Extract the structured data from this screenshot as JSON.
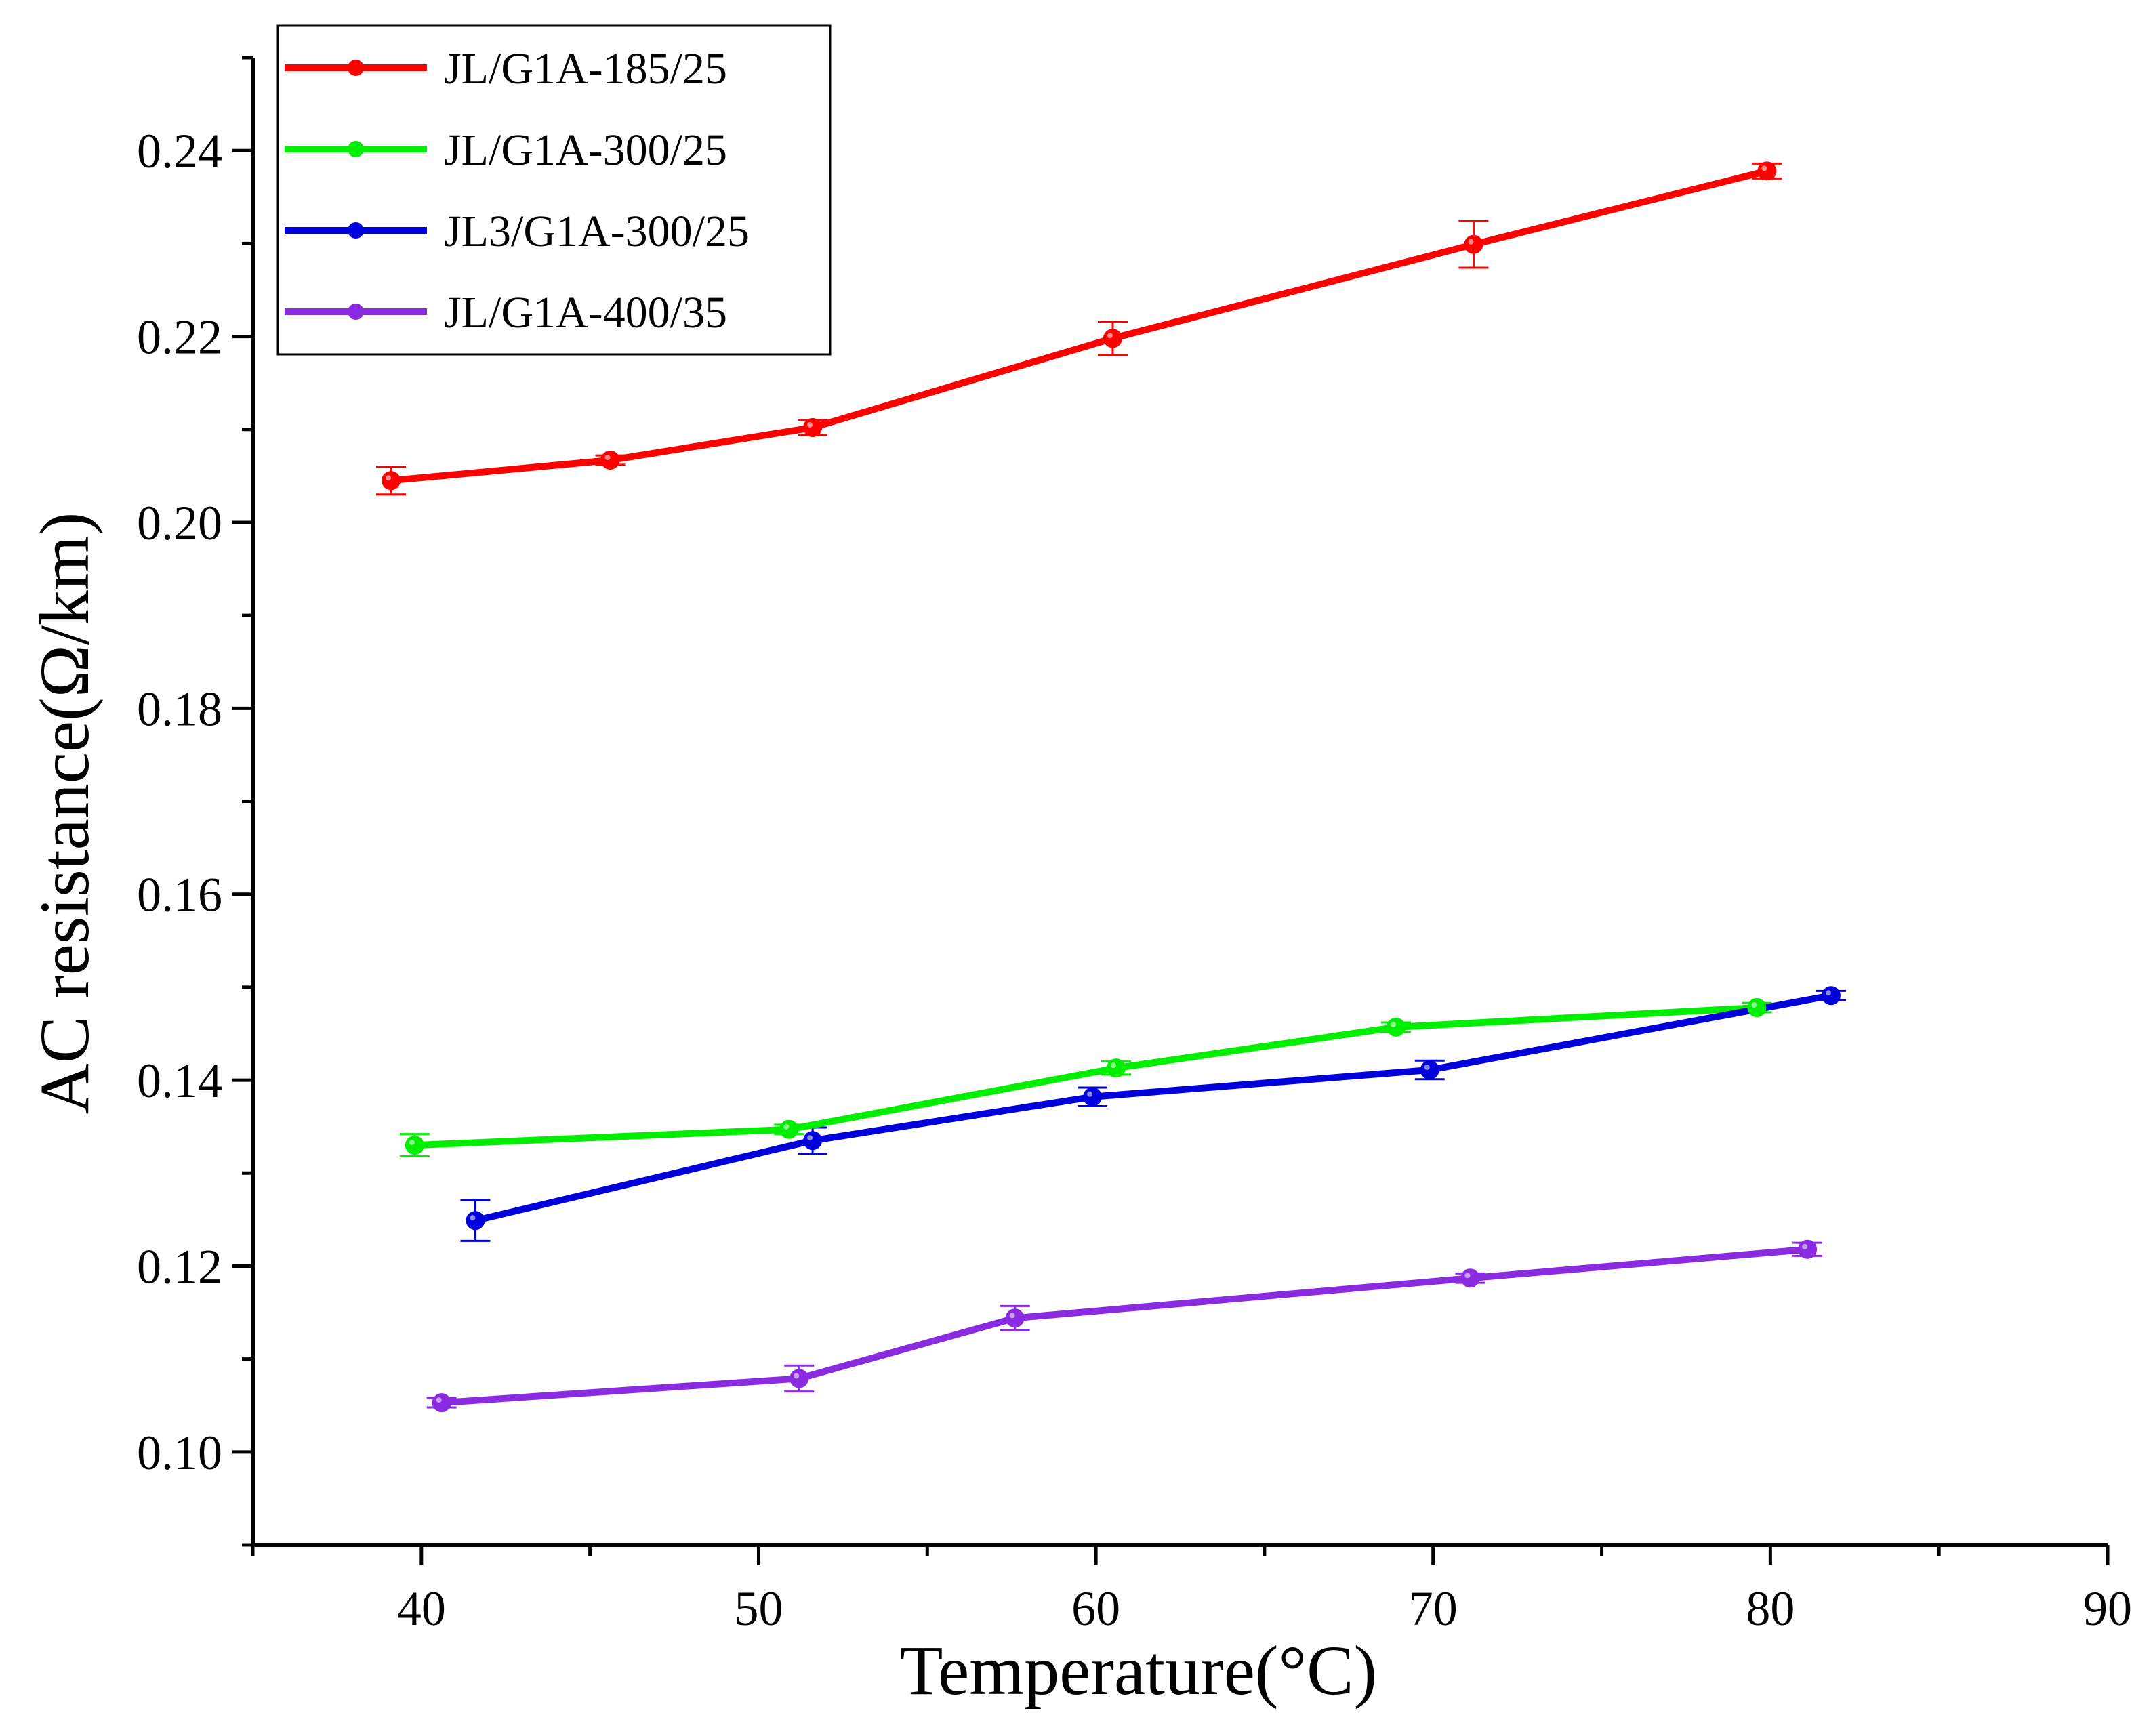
{
  "chart_data": {
    "type": "line",
    "title": "",
    "xlabel": "Temperature(°C)",
    "ylabel": "AC resistance(Ω/km)",
    "xlim": [
      35,
      90
    ],
    "ylim": [
      0.09,
      0.25
    ],
    "xticks": [
      40,
      50,
      60,
      70,
      80,
      90
    ],
    "yticks": [
      0.1,
      0.12,
      0.14,
      0.16,
      0.18,
      0.2,
      0.22,
      0.24
    ],
    "xtick_labels": [
      "40",
      "50",
      "60",
      "70",
      "80",
      "90"
    ],
    "ytick_labels": [
      "0.10",
      "0.12",
      "0.14",
      "0.16",
      "0.18",
      "0.20",
      "0.22",
      "0.24"
    ],
    "legend_position": "top-left",
    "series": [
      {
        "name": "JL/G1A-185/25",
        "color": "#ff0000",
        "x": [
          39.1,
          45.6,
          51.6,
          60.5,
          71.2,
          79.9
        ],
        "y": [
          0.2045,
          0.2067,
          0.2102,
          0.2198,
          0.2299,
          0.2378
        ],
        "err": [
          0.0015,
          0.0005,
          0.0008,
          0.0018,
          0.0025,
          0.0008
        ]
      },
      {
        "name": "JL/G1A-300/25",
        "color": "#00ee00",
        "x": [
          39.8,
          50.9,
          60.6,
          68.9,
          79.6
        ],
        "y": [
          0.133,
          0.1347,
          0.1413,
          0.1457,
          0.1478
        ],
        "err": [
          0.0012,
          0.0005,
          0.0007,
          0.0005,
          0.0005
        ]
      },
      {
        "name": "JL3/G1A-300/25",
        "color": "#0000dd",
        "x": [
          41.6,
          51.6,
          59.9,
          69.9,
          81.8
        ],
        "y": [
          0.1249,
          0.1335,
          0.1382,
          0.1411,
          0.1491
        ],
        "err": [
          0.0022,
          0.0014,
          0.001,
          0.001,
          0.0005
        ]
      },
      {
        "name": "JL/G1A-400/35",
        "color": "#8a2be2",
        "x": [
          40.6,
          51.2,
          57.6,
          71.1,
          81.1
        ],
        "y": [
          0.1053,
          0.1079,
          0.1144,
          0.1187,
          0.1218
        ],
        "err": [
          0.0005,
          0.0014,
          0.0013,
          0.0005,
          0.0007
        ]
      }
    ]
  }
}
